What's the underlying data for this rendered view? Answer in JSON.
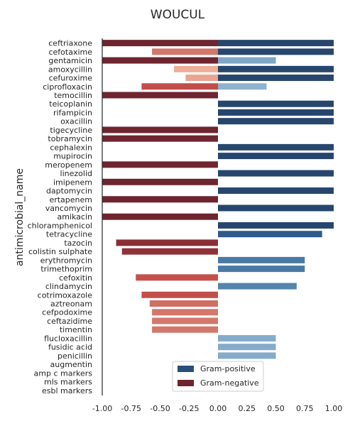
{
  "chart_data": {
    "type": "bar",
    "orientation": "horizontal",
    "title": "WOUCUL",
    "xlabel": "",
    "ylabel": "antimicrobial_name",
    "xlim": [
      -1.0,
      1.0
    ],
    "xticks": [
      "-1.00",
      "-0.75",
      "-0.50",
      "-0.25",
      "0.00",
      "0.25",
      "0.50",
      "0.75",
      "1.00"
    ],
    "xtick_values": [
      -1.0,
      -0.75,
      -0.5,
      -0.25,
      0.0,
      0.25,
      0.5,
      0.75,
      1.0
    ],
    "grid": false,
    "legend_placement": "bottom-center",
    "categories": [
      "ceftriaxone",
      "cefotaxime",
      "gentamicin",
      "amoxycillin",
      "cefuroxime",
      "ciprofloxacin",
      "temocillin",
      "teicoplanin",
      "rifampicin",
      "oxacillin",
      "tigecycline",
      "tobramycin",
      "cephalexin",
      "mupirocin",
      "meropenem",
      "linezolid",
      "imipenem",
      "daptomycin",
      "ertapenem",
      "vancomycin",
      "amikacin",
      "chloramphenicol",
      "tetracycline",
      "tazocin",
      "colistin sulphate",
      "erythromycin",
      "trimethoprim",
      "cefoxitin",
      "clindamycin",
      "cotrimoxazole",
      "aztreonam",
      "cefpodoxime",
      "ceftazidime",
      "timentin",
      "flucloxacillin",
      "fusidic acid",
      "penicillin",
      "augmentin",
      "amp c markers",
      "mls markers",
      "esbl markers"
    ],
    "series": [
      {
        "name": "Gram-positive",
        "color": "#2a4e78",
        "values": [
          1.0,
          1.0,
          0.5,
          1.0,
          1.0,
          0.42,
          null,
          1.0,
          1.0,
          1.0,
          null,
          null,
          1.0,
          1.0,
          null,
          1.0,
          null,
          1.0,
          null,
          1.0,
          null,
          1.0,
          0.9,
          null,
          null,
          0.75,
          0.75,
          null,
          0.68,
          null,
          null,
          null,
          null,
          null,
          0.5,
          0.5,
          0.5,
          null,
          null,
          null,
          null
        ]
      },
      {
        "name": "Gram-negative",
        "color": "#6e2530",
        "values": [
          -1.0,
          -0.57,
          -1.0,
          -0.38,
          -0.28,
          -0.66,
          -1.0,
          null,
          null,
          null,
          -1.0,
          -1.0,
          null,
          null,
          -1.0,
          null,
          -1.0,
          null,
          -1.0,
          null,
          -1.0,
          null,
          null,
          -0.88,
          -0.83,
          null,
          null,
          -0.71,
          null,
          -0.66,
          -0.59,
          -0.57,
          -0.57,
          -0.57,
          null,
          null,
          null,
          null,
          null,
          null,
          null
        ]
      }
    ]
  },
  "pos_colors": [
    "#26466d",
    "#26466d",
    "#7fa7c7",
    "#26466d",
    "#26466d",
    "#8fb2cf",
    "#ffffff",
    "#26466d",
    "#26466d",
    "#26466d",
    "#ffffff",
    "#ffffff",
    "#26466d",
    "#26466d",
    "#ffffff",
    "#26466d",
    "#ffffff",
    "#26466d",
    "#ffffff",
    "#26466d",
    "#ffffff",
    "#26466d",
    "#2f5b8c",
    "#ffffff",
    "#ffffff",
    "#4a7aa3",
    "#4a7aa3",
    "#ffffff",
    "#5584ad",
    "#ffffff",
    "#ffffff",
    "#ffffff",
    "#ffffff",
    "#ffffff",
    "#85abca",
    "#85abca",
    "#85abca",
    "#ffffff",
    "#ffffff",
    "#ffffff",
    "#ffffff"
  ],
  "neg_colors": [
    "#6e2530",
    "#d1766a",
    "#6e2530",
    "#eeae98",
    "#eba491",
    "#c04d4a",
    "#6e2530",
    "#ffffff",
    "#ffffff",
    "#ffffff",
    "#6e2530",
    "#6e2530",
    "#ffffff",
    "#ffffff",
    "#6e2530",
    "#ffffff",
    "#6e2530",
    "#ffffff",
    "#6e2530",
    "#ffffff",
    "#6e2530",
    "#ffffff",
    "#ffffff",
    "#8a2e36",
    "#8f3138",
    "#ffffff",
    "#ffffff",
    "#c4504b",
    "#ffffff",
    "#c24e4a",
    "#d06e64",
    "#d3776b",
    "#d3776b",
    "#d3776b",
    "#ffffff",
    "#ffffff",
    "#ffffff",
    "#ffffff",
    "#ffffff",
    "#ffffff",
    "#ffffff"
  ]
}
